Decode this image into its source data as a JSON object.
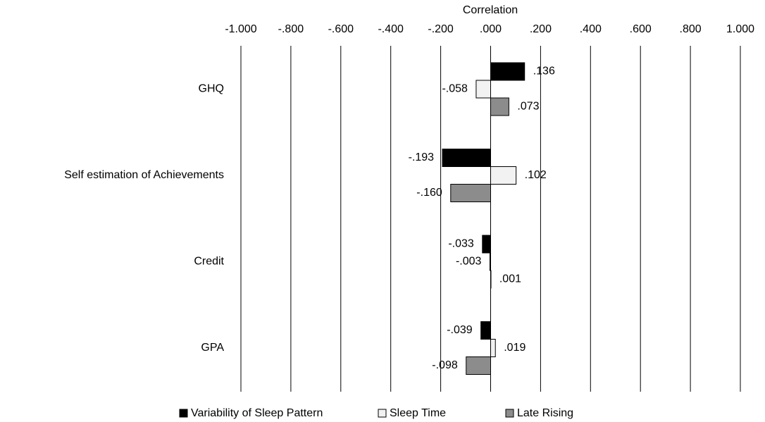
{
  "chart_data": {
    "type": "bar",
    "orientation": "horizontal",
    "xlabel": "Correlation",
    "categories": [
      "GHQ",
      "Self estimation of Achievements",
      "Credit",
      "GPA"
    ],
    "series": [
      {
        "name": "Variability of Sleep Pattern",
        "color": "#000000",
        "values": [
          0.136,
          -0.193,
          -0.033,
          -0.039
        ],
        "value_labels": [
          ".136",
          "-.193",
          "-.033",
          "-.039"
        ]
      },
      {
        "name": "Sleep Time",
        "color": "#f2f2f2",
        "values": [
          -0.058,
          0.102,
          -0.003,
          0.019
        ],
        "value_labels": [
          "-.058",
          ".102",
          "-.003",
          ".019"
        ]
      },
      {
        "name": "Late Rising",
        "color": "#8c8c8c",
        "values": [
          0.073,
          -0.16,
          0.001,
          -0.098
        ],
        "value_labels": [
          ".073",
          "-.160",
          ".001",
          "-.098"
        ]
      }
    ],
    "xlim": [
      -1,
      1
    ],
    "xticks": [
      {
        "value": -1,
        "label": "-1.000"
      },
      {
        "value": -0.8,
        "label": "-.800"
      },
      {
        "value": -0.6,
        "label": "-.600"
      },
      {
        "value": -0.4,
        "label": "-.400"
      },
      {
        "value": -0.2,
        "label": "-.200"
      },
      {
        "value": 0,
        "label": ".000"
      },
      {
        "value": 0.2,
        "label": ".200"
      },
      {
        "value": 0.4,
        "label": ".400"
      },
      {
        "value": 0.6,
        "label": ".600"
      },
      {
        "value": 0.8,
        "label": ".800"
      },
      {
        "value": 1,
        "label": "1.000"
      }
    ],
    "grid": true,
    "legend": "bottom"
  }
}
